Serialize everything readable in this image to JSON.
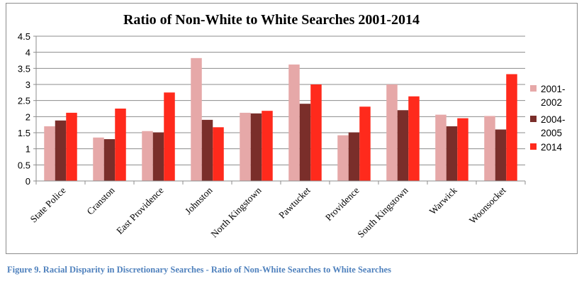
{
  "chart_data": {
    "type": "bar",
    "title": "Ratio of Non-White to White Searches 2001-2014",
    "xlabel": "",
    "ylabel": "",
    "ylim": [
      0,
      4.5
    ],
    "yticks": [
      "0",
      "0.5",
      "1",
      "1.5",
      "2",
      "2.5",
      "3",
      "3.5",
      "4",
      "4.5"
    ],
    "grid": true,
    "legend_position": "right",
    "categories": [
      "State Police",
      "Cranston",
      "East Providence",
      "Johnston",
      "North Kingstown",
      "Pawtucket",
      "Providence",
      "South Kingstown",
      "Warwick",
      "Woonsocket"
    ],
    "series": [
      {
        "name": "2001-2002",
        "legend_lines": [
          "2001-",
          "2002"
        ],
        "color": "#e6a8a8",
        "values": [
          1.7,
          1.35,
          1.55,
          3.82,
          2.12,
          3.62,
          1.42,
          3.0,
          2.06,
          2.02
        ]
      },
      {
        "name": "2004-2005",
        "legend_lines": [
          "2004-",
          "2005"
        ],
        "color": "#7a2e2a",
        "values": [
          1.88,
          1.3,
          1.51,
          1.9,
          2.1,
          2.4,
          1.51,
          2.2,
          1.7,
          1.6
        ]
      },
      {
        "name": "2014",
        "legend_lines": [
          "2014"
        ],
        "color": "#ff2a1c",
        "values": [
          2.12,
          2.25,
          2.75,
          1.67,
          2.18,
          3.0,
          2.31,
          2.63,
          1.95,
          3.32
        ]
      }
    ]
  },
  "caption": "Figure 9. Racial Disparity in Discretionary Searches - Ratio of Non-White Searches to White Searches"
}
